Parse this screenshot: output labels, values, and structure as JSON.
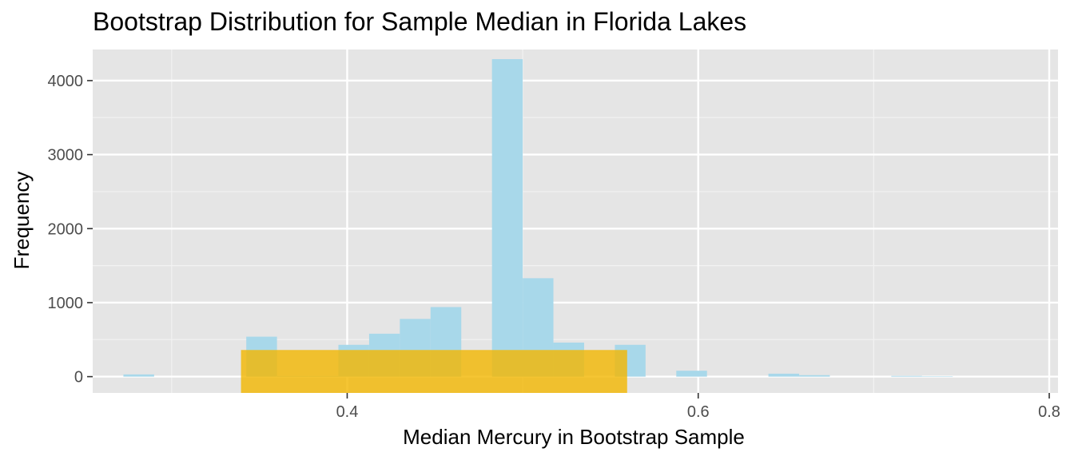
{
  "chart_data": {
    "type": "bar",
    "title": "Bootstrap Distribution for Sample Median in Florida Lakes",
    "xlabel": "Median Mercury in Bootstrap Sample",
    "ylabel": "Frequency",
    "xlim": [
      0.255,
      0.805
    ],
    "ylim": [
      -220,
      4420
    ],
    "x_ticks": [
      0.4,
      0.6,
      0.8
    ],
    "x_tick_labels": [
      "0.4",
      "0.6",
      "0.8"
    ],
    "y_ticks": [
      0,
      1000,
      2000,
      3000,
      4000
    ],
    "y_tick_labels": [
      "0",
      "1000",
      "2000",
      "3000",
      "4000"
    ],
    "grid": true,
    "panel_background": "#e5e5e5",
    "bin_width": 0.0175,
    "histogram": {
      "color": "#a8d8ea",
      "bins": [
        {
          "x0": 0.2725,
          "x1": 0.29,
          "count": 30
        },
        {
          "x0": 0.3425,
          "x1": 0.36,
          "count": 540
        },
        {
          "x0": 0.36,
          "x1": 0.3775,
          "count": 10
        },
        {
          "x0": 0.3775,
          "x1": 0.395,
          "count": 10
        },
        {
          "x0": 0.395,
          "x1": 0.4125,
          "count": 430
        },
        {
          "x0": 0.4125,
          "x1": 0.43,
          "count": 580
        },
        {
          "x0": 0.43,
          "x1": 0.4475,
          "count": 780
        },
        {
          "x0": 0.4475,
          "x1": 0.465,
          "count": 940
        },
        {
          "x0": 0.4825,
          "x1": 0.5,
          "count": 4290
        },
        {
          "x0": 0.5,
          "x1": 0.5175,
          "count": 1330
        },
        {
          "x0": 0.5175,
          "x1": 0.535,
          "count": 460
        },
        {
          "x0": 0.5525,
          "x1": 0.57,
          "count": 430
        },
        {
          "x0": 0.5875,
          "x1": 0.605,
          "count": 80
        },
        {
          "x0": 0.64,
          "x1": 0.6575,
          "count": 40
        },
        {
          "x0": 0.6575,
          "x1": 0.675,
          "count": 20
        },
        {
          "x0": 0.71,
          "x1": 0.7275,
          "count": 10
        },
        {
          "x0": 0.7275,
          "x1": 0.745,
          "count": 5
        }
      ]
    },
    "interval_band": {
      "color": "#f2b600",
      "x0": 0.3395,
      "x1": 0.5595,
      "y0": -220,
      "y1": 360
    }
  }
}
